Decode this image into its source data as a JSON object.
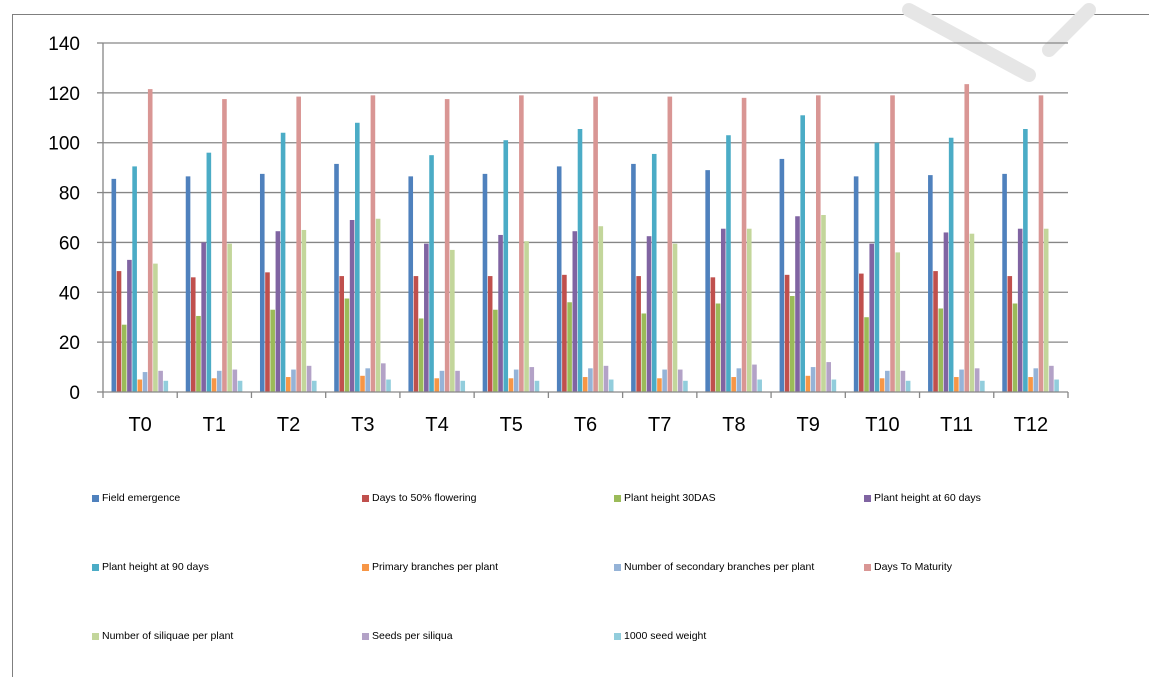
{
  "chart_data": {
    "type": "bar",
    "title": "",
    "xlabel": "",
    "ylabel": "",
    "ylim": [
      0,
      140
    ],
    "yticks": [
      0,
      20,
      40,
      60,
      80,
      100,
      120,
      140
    ],
    "grid": true,
    "legend_position": "bottom",
    "categories": [
      "T0",
      "T1",
      "T2",
      "T3",
      "T4",
      "T5",
      "T6",
      "T7",
      "T8",
      "T9",
      "T10",
      "T11",
      "T12"
    ],
    "series": [
      {
        "name": "Field emergence",
        "color": "#4f81bd",
        "values": [
          85.5,
          86.5,
          87.5,
          91.5,
          86.5,
          87.5,
          90.5,
          91.5,
          89,
          93.5,
          86.5,
          87,
          87.5
        ]
      },
      {
        "name": "Days to 50% flowering",
        "color": "#c0504d",
        "values": [
          48.5,
          46,
          48,
          46.5,
          46.5,
          46.5,
          47,
          46.5,
          46,
          47,
          47.5,
          48.5,
          46.5
        ]
      },
      {
        "name": "Plant height 30DAS",
        "color": "#9bbb59",
        "values": [
          27,
          30.5,
          33,
          37.5,
          29.5,
          33,
          36,
          31.5,
          35.5,
          38.5,
          30,
          33.5,
          35.5
        ]
      },
      {
        "name": "Plant height at 60 days",
        "color": "#8064a2",
        "values": [
          53,
          60,
          64.5,
          69,
          59.5,
          63,
          64.5,
          62.5,
          65.5,
          70.5,
          59.5,
          64,
          65.5
        ]
      },
      {
        "name": "Plant height at 90 days",
        "color": "#4bacc6",
        "values": [
          90.5,
          96,
          104,
          108,
          95,
          101,
          105.5,
          95.5,
          103,
          111,
          100,
          102,
          105.5
        ]
      },
      {
        "name": "Primary branches per plant",
        "color": "#f79646",
        "values": [
          5,
          5.5,
          6,
          6.5,
          5.5,
          5.5,
          6,
          5.5,
          6,
          6.5,
          5.5,
          6,
          6
        ]
      },
      {
        "name": "Number of secondary branches per plant",
        "color": "#95b3d7",
        "values": [
          8,
          8.5,
          9,
          9.5,
          8.5,
          9,
          9.5,
          9,
          9.5,
          10,
          8.5,
          9,
          9.5
        ]
      },
      {
        "name": "Days To Maturity",
        "color": "#d99694",
        "values": [
          121.5,
          117.5,
          118.5,
          119,
          117.5,
          119,
          118.5,
          118.5,
          118,
          119,
          119,
          123.5,
          119
        ]
      },
      {
        "name": "Number of siliquae per plant",
        "color": "#c3d69b",
        "values": [
          51.5,
          59.5,
          65,
          69.5,
          57,
          60.5,
          66.5,
          59.5,
          65.5,
          71,
          56,
          63.5,
          65.5
        ]
      },
      {
        "name": "Seeds per siliqua",
        "color": "#b3a2c7",
        "values": [
          8.5,
          9,
          10.5,
          11.5,
          8.5,
          10,
          10.5,
          9,
          11,
          12,
          8.5,
          9.5,
          10.5
        ]
      },
      {
        "name": "1000 seed weight",
        "color": "#92cddc",
        "values": [
          4.5,
          4.5,
          4.5,
          5,
          4.5,
          4.5,
          5,
          4.5,
          5,
          5,
          4.5,
          4.5,
          5
        ]
      }
    ]
  }
}
